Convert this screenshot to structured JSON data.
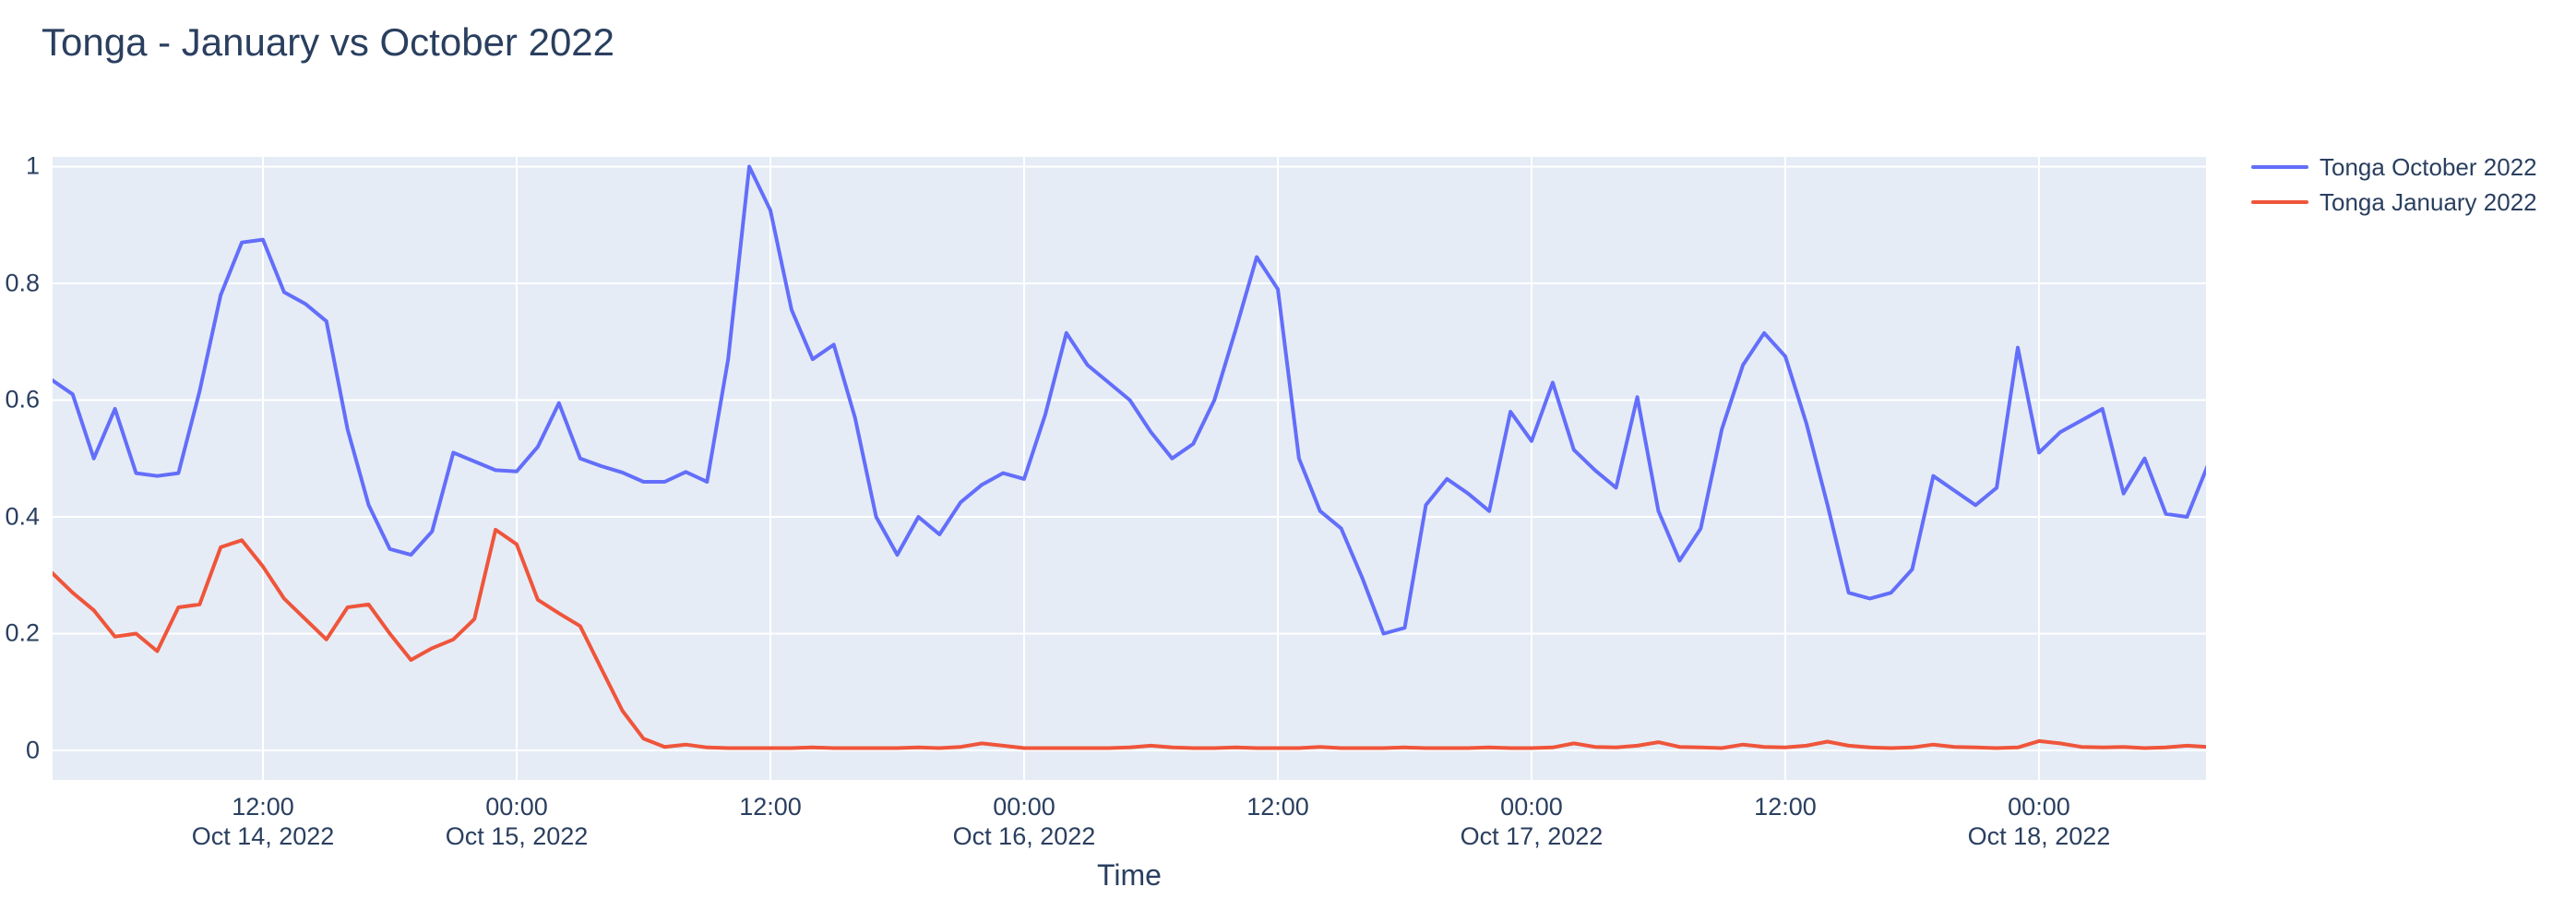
{
  "chart_data": {
    "type": "line",
    "title": "Tonga - January vs October 2022",
    "xlabel": "Time",
    "ylabel": "",
    "grid": true,
    "legend_position": "top-right-outside",
    "colors": {
      "plot_background": "#e5ecf6",
      "grid": "#ffffff",
      "text": "#2a3f5f",
      "series_october": "#636efa",
      "series_january": "#ef553b"
    },
    "x_unit": "hours since Oct 14, 2022 00:00",
    "x_range": [
      2.05,
      103.9
    ],
    "y_range": [
      -0.0506,
      1.0166
    ],
    "y_ticks": [
      {
        "value": 0,
        "label": "0"
      },
      {
        "value": 0.2,
        "label": "0.2"
      },
      {
        "value": 0.4,
        "label": "0.4"
      },
      {
        "value": 0.6,
        "label": "0.6"
      },
      {
        "value": 0.8,
        "label": "0.8"
      },
      {
        "value": 1,
        "label": "1"
      }
    ],
    "x_ticks": [
      {
        "t": 12,
        "line1": "12:00",
        "line2": "Oct 14, 2022"
      },
      {
        "t": 24,
        "line1": "00:00",
        "line2": "Oct 15, 2022"
      },
      {
        "t": 36,
        "line1": "12:00",
        "line2": ""
      },
      {
        "t": 48,
        "line1": "00:00",
        "line2": "Oct 16, 2022"
      },
      {
        "t": 60,
        "line1": "12:00",
        "line2": ""
      },
      {
        "t": 72,
        "line1": "00:00",
        "line2": "Oct 17, 2022"
      },
      {
        "t": 84,
        "line1": "12:00",
        "line2": ""
      },
      {
        "t": 96,
        "line1": "00:00",
        "line2": "Oct 18, 2022"
      }
    ],
    "series": [
      {
        "name": "Tonga October 2022",
        "color": "#636efa",
        "points": [
          [
            2,
            0.635
          ],
          [
            3,
            0.61
          ],
          [
            4,
            0.5
          ],
          [
            5,
            0.585
          ],
          [
            6,
            0.475
          ],
          [
            7,
            0.47
          ],
          [
            8,
            0.475
          ],
          [
            9,
            0.615
          ],
          [
            10,
            0.78
          ],
          [
            11,
            0.87
          ],
          [
            12,
            0.875
          ],
          [
            13,
            0.785
          ],
          [
            14,
            0.765
          ],
          [
            15,
            0.735
          ],
          [
            16,
            0.55
          ],
          [
            17,
            0.42
          ],
          [
            18,
            0.345
          ],
          [
            19,
            0.335
          ],
          [
            20,
            0.375
          ],
          [
            21,
            0.51
          ],
          [
            22,
            0.495
          ],
          [
            23,
            0.48
          ],
          [
            24,
            0.478
          ],
          [
            25,
            0.52
          ],
          [
            26,
            0.595
          ],
          [
            27,
            0.5
          ],
          [
            28,
            0.487
          ],
          [
            29,
            0.476
          ],
          [
            30,
            0.46
          ],
          [
            31,
            0.46
          ],
          [
            32,
            0.477
          ],
          [
            33,
            0.46
          ],
          [
            34,
            0.67
          ],
          [
            35,
            1.0
          ],
          [
            36,
            0.925
          ],
          [
            37,
            0.755
          ],
          [
            38,
            0.67
          ],
          [
            39,
            0.695
          ],
          [
            40,
            0.57
          ],
          [
            41,
            0.4
          ],
          [
            42,
            0.335
          ],
          [
            43,
            0.4
          ],
          [
            44,
            0.37
          ],
          [
            45,
            0.425
          ],
          [
            46,
            0.455
          ],
          [
            47,
            0.475
          ],
          [
            48,
            0.465
          ],
          [
            49,
            0.575
          ],
          [
            50,
            0.715
          ],
          [
            51,
            0.66
          ],
          [
            52,
            0.63
          ],
          [
            53,
            0.6
          ],
          [
            54,
            0.545
          ],
          [
            55,
            0.5
          ],
          [
            56,
            0.525
          ],
          [
            57,
            0.6
          ],
          [
            58,
            0.72
          ],
          [
            59,
            0.845
          ],
          [
            60,
            0.79
          ],
          [
            61,
            0.5
          ],
          [
            62,
            0.41
          ],
          [
            63,
            0.38
          ],
          [
            64,
            0.295
          ],
          [
            65,
            0.2
          ],
          [
            66,
            0.21
          ],
          [
            67,
            0.42
          ],
          [
            68,
            0.465
          ],
          [
            69,
            0.44
          ],
          [
            70,
            0.41
          ],
          [
            71,
            0.58
          ],
          [
            72,
            0.53
          ],
          [
            73,
            0.63
          ],
          [
            74,
            0.515
          ],
          [
            75,
            0.48
          ],
          [
            76,
            0.45
          ],
          [
            77,
            0.605
          ],
          [
            78,
            0.41
          ],
          [
            79,
            0.325
          ],
          [
            80,
            0.38
          ],
          [
            81,
            0.55
          ],
          [
            82,
            0.66
          ],
          [
            83,
            0.715
          ],
          [
            84,
            0.675
          ],
          [
            85,
            0.56
          ],
          [
            86,
            0.42
          ],
          [
            87,
            0.27
          ],
          [
            88,
            0.26
          ],
          [
            89,
            0.27
          ],
          [
            90,
            0.31
          ],
          [
            91,
            0.47
          ],
          [
            92,
            0.445
          ],
          [
            93,
            0.42
          ],
          [
            94,
            0.45
          ],
          [
            95,
            0.69
          ],
          [
            96,
            0.51
          ],
          [
            97,
            0.545
          ],
          [
            98,
            0.565
          ],
          [
            99,
            0.585
          ],
          [
            100,
            0.44
          ],
          [
            101,
            0.5
          ],
          [
            102,
            0.405
          ],
          [
            103,
            0.4
          ],
          [
            104,
            0.49
          ]
        ]
      },
      {
        "name": "Tonga January 2022",
        "color": "#ef553b",
        "points": [
          [
            2,
            0.305
          ],
          [
            3,
            0.27
          ],
          [
            4,
            0.24
          ],
          [
            5,
            0.195
          ],
          [
            6,
            0.2
          ],
          [
            7,
            0.17
          ],
          [
            8,
            0.245
          ],
          [
            9,
            0.25
          ],
          [
            10,
            0.348
          ],
          [
            11,
            0.36
          ],
          [
            12,
            0.315
          ],
          [
            13,
            0.26
          ],
          [
            14,
            0.225
          ],
          [
            15,
            0.19
          ],
          [
            16,
            0.245
          ],
          [
            17,
            0.25
          ],
          [
            18,
            0.2
          ],
          [
            19,
            0.155
          ],
          [
            20,
            0.175
          ],
          [
            21,
            0.19
          ],
          [
            22,
            0.225
          ],
          [
            23,
            0.378
          ],
          [
            24,
            0.353
          ],
          [
            25,
            0.258
          ],
          [
            26,
            0.235
          ],
          [
            27,
            0.213
          ],
          [
            28,
            0.14
          ],
          [
            29,
            0.068
          ],
          [
            30,
            0.02
          ],
          [
            31,
            0.006
          ],
          [
            32,
            0.01
          ],
          [
            33,
            0.005
          ],
          [
            34,
            0.004
          ],
          [
            35,
            0.004
          ],
          [
            36,
            0.004
          ],
          [
            37,
            0.004
          ],
          [
            38,
            0.005
          ],
          [
            39,
            0.004
          ],
          [
            40,
            0.004
          ],
          [
            41,
            0.004
          ],
          [
            42,
            0.004
          ],
          [
            43,
            0.005
          ],
          [
            44,
            0.004
          ],
          [
            45,
            0.006
          ],
          [
            46,
            0.012
          ],
          [
            47,
            0.008
          ],
          [
            48,
            0.004
          ],
          [
            49,
            0.004
          ],
          [
            50,
            0.004
          ],
          [
            51,
            0.004
          ],
          [
            52,
            0.004
          ],
          [
            53,
            0.005
          ],
          [
            54,
            0.008
          ],
          [
            55,
            0.005
          ],
          [
            56,
            0.004
          ],
          [
            57,
            0.004
          ],
          [
            58,
            0.005
          ],
          [
            59,
            0.004
          ],
          [
            60,
            0.004
          ],
          [
            61,
            0.004
          ],
          [
            62,
            0.006
          ],
          [
            63,
            0.004
          ],
          [
            64,
            0.004
          ],
          [
            65,
            0.004
          ],
          [
            66,
            0.005
          ],
          [
            67,
            0.004
          ],
          [
            68,
            0.004
          ],
          [
            69,
            0.004
          ],
          [
            70,
            0.005
          ],
          [
            71,
            0.004
          ],
          [
            72,
            0.004
          ],
          [
            73,
            0.005
          ],
          [
            74,
            0.012
          ],
          [
            75,
            0.006
          ],
          [
            76,
            0.005
          ],
          [
            77,
            0.008
          ],
          [
            78,
            0.014
          ],
          [
            79,
            0.006
          ],
          [
            80,
            0.005
          ],
          [
            81,
            0.004
          ],
          [
            82,
            0.01
          ],
          [
            83,
            0.006
          ],
          [
            84,
            0.005
          ],
          [
            85,
            0.008
          ],
          [
            86,
            0.015
          ],
          [
            87,
            0.008
          ],
          [
            88,
            0.005
          ],
          [
            89,
            0.004
          ],
          [
            90,
            0.005
          ],
          [
            91,
            0.01
          ],
          [
            92,
            0.006
          ],
          [
            93,
            0.005
          ],
          [
            94,
            0.004
          ],
          [
            95,
            0.005
          ],
          [
            96,
            0.016
          ],
          [
            97,
            0.012
          ],
          [
            98,
            0.006
          ],
          [
            99,
            0.005
          ],
          [
            100,
            0.006
          ],
          [
            101,
            0.004
          ],
          [
            102,
            0.005
          ],
          [
            103,
            0.008
          ],
          [
            104,
            0.006
          ]
        ]
      }
    ]
  }
}
